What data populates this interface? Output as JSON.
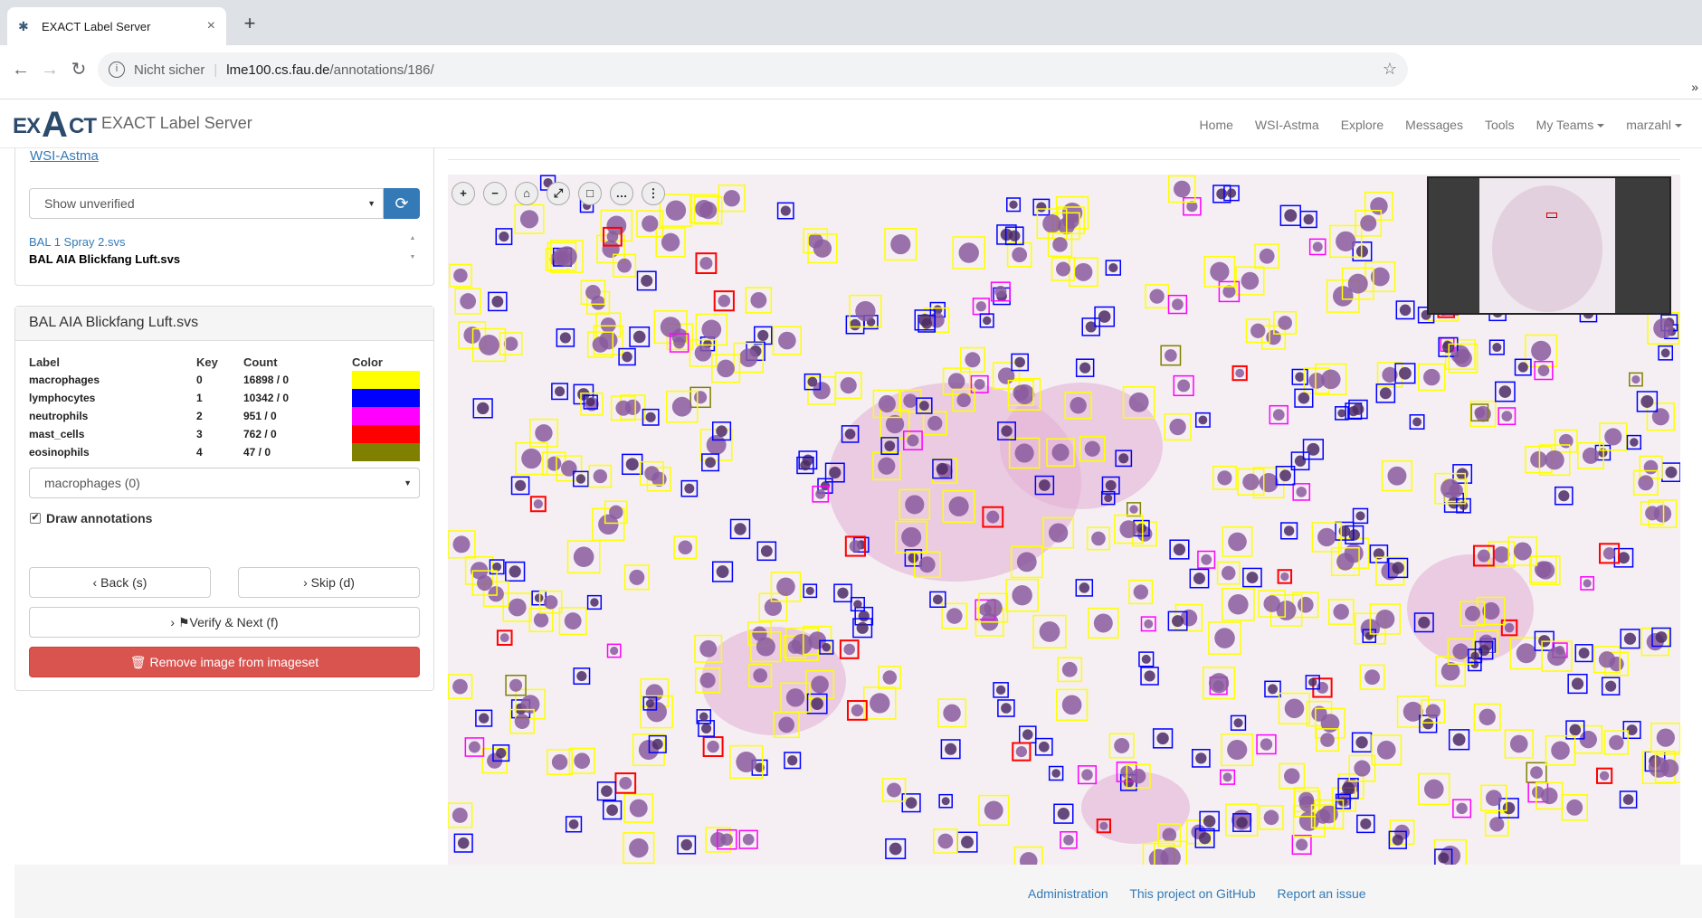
{
  "browser": {
    "tab_title": "EXACT Label Server",
    "tab_close": "×",
    "new_tab": "+",
    "security_label": "Nicht sicher",
    "url_host": "lme100.cs.fau.de",
    "url_path": "/annotations/186/",
    "overflow": "»"
  },
  "app": {
    "logo_ex": "EX",
    "logo_a": "A",
    "logo_ct": "CT",
    "brand": "EXACT Label Server",
    "nav": [
      "Home",
      "WSI-Astma",
      "Explore",
      "Messages",
      "Tools",
      "My Teams",
      "marzahl"
    ]
  },
  "imageset_panel": {
    "imageset_link": "WSI-Astma",
    "filter_value": "Show unverified",
    "images": [
      "BAL 1 Spray 2.svs",
      "BAL AIA Blickfang Luft.svs"
    ]
  },
  "annotation_panel": {
    "title": "BAL AIA Blickfang Luft.svs",
    "columns": [
      "Label",
      "Key",
      "Count",
      "Color"
    ],
    "labels": [
      {
        "name": "macrophages",
        "key": "0",
        "count": "16898 / 0",
        "color": "#ffff00"
      },
      {
        "name": "lymphocytes",
        "key": "1",
        "count": "10342 / 0",
        "color": "#0000ff"
      },
      {
        "name": "neutrophils",
        "key": "2",
        "count": "951 / 0",
        "color": "#ff00ff"
      },
      {
        "name": "mast_cells",
        "key": "3",
        "count": "762 / 0",
        "color": "#ff0000"
      },
      {
        "name": "eosinophils",
        "key": "4",
        "count": "47 / 0",
        "color": "#808000"
      }
    ],
    "selected_label": "macrophages (0)",
    "draw_annotations": "Draw annotations",
    "back_button": "Back (s)",
    "skip_button": "Skip (d)",
    "verify_button": "Verify & Next (f)",
    "remove_button": "Remove image from imageset"
  },
  "viewer": {
    "tools": [
      "zoom-in",
      "zoom-out",
      "home",
      "fullscreen",
      "rectangle",
      "ellipsis",
      "more"
    ]
  },
  "footer": {
    "links": [
      "Administration",
      "This project on GitHub",
      "Report an issue"
    ]
  }
}
